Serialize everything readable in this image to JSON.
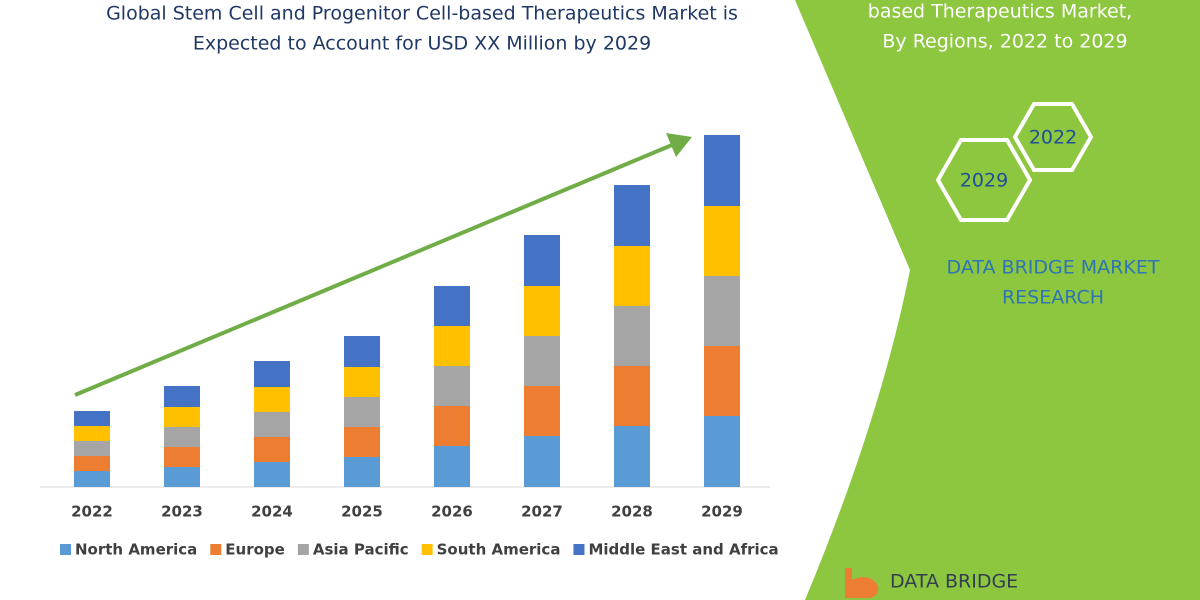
{
  "chart_data": {
    "type": "stacked_bar",
    "title": [
      "Global Stem Cell and Progenitor Cell-based Therapeutics Market is",
      "Expected to Account for USD XX Million by 2029"
    ],
    "categories": [
      "2022",
      "2023",
      "2024",
      "2025",
      "2026",
      "2027",
      "2028",
      "2029"
    ],
    "series": [
      {
        "name": "North America",
        "color": "#5b9bd5",
        "values": [
          16,
          20,
          25,
          30,
          41,
          51,
          61,
          71
        ]
      },
      {
        "name": "Europe",
        "color": "#ed7d31",
        "values": [
          15,
          20,
          25,
          30,
          40,
          50,
          60,
          70
        ]
      },
      {
        "name": "Asia Pacific",
        "color": "#a5a5a5",
        "values": [
          15,
          20,
          25,
          30,
          40,
          50,
          60,
          70
        ]
      },
      {
        "name": "South America",
        "color": "#ffc000",
        "values": [
          15,
          20,
          25,
          30,
          40,
          50,
          60,
          70
        ]
      },
      {
        "name": "Middle East and Africa",
        "color": "#4472c4",
        "values": [
          15,
          21,
          26,
          31,
          40,
          51,
          61,
          71
        ]
      }
    ],
    "ylim": [
      0,
      360
    ]
  },
  "panel": {
    "title": [
      "based Therapeutics Market,",
      "By Regions, 2022 to 2029"
    ],
    "badges": [
      "2022",
      "2029"
    ],
    "brand": [
      "DATA BRIDGE MARKET",
      "RESEARCH"
    ],
    "logo": "DATA BRIDGE"
  }
}
